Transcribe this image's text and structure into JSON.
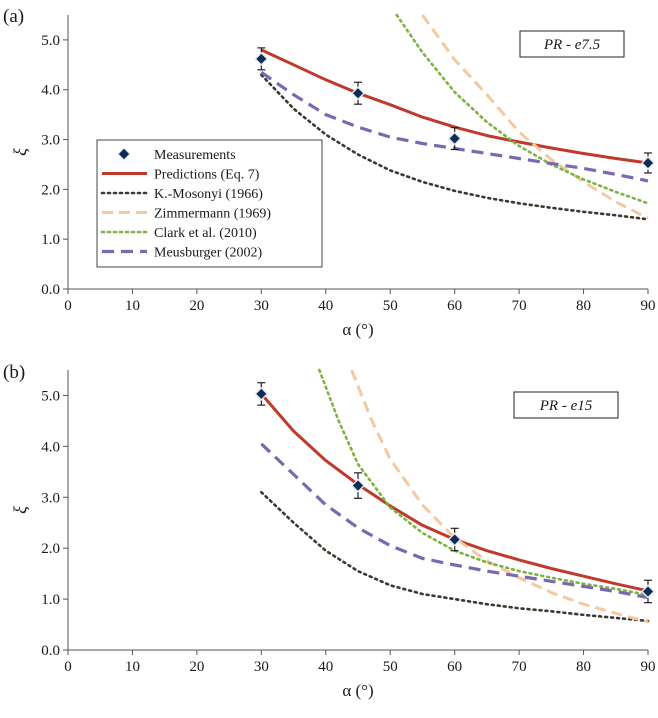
{
  "chart_data": [
    {
      "type": "line",
      "panel": "(a)",
      "case_label": "PR - e7.5",
      "xlabel": "α (°)",
      "ylabel": "ξ",
      "xlim": [
        0,
        90
      ],
      "ylim": [
        0,
        5.5
      ],
      "x_ticks": [
        "0",
        "10",
        "20",
        "30",
        "40",
        "50",
        "60",
        "70",
        "80",
        "90"
      ],
      "y_ticks": [
        "0.0",
        "1.0",
        "2.0",
        "3.0",
        "4.0",
        "5.0"
      ],
      "grid": false,
      "legend_position": "left",
      "measurements": {
        "name": "Measurements",
        "x": [
          30,
          45,
          60,
          90
        ],
        "y": [
          4.62,
          3.93,
          3.02,
          2.53
        ],
        "err": [
          0.22,
          0.22,
          0.22,
          0.2
        ]
      },
      "series": [
        {
          "name": "Predictions (Eq. 7)",
          "color": "#c0392b",
          "dash": "solid",
          "x": [
            30,
            35,
            40,
            45,
            50,
            55,
            60,
            65,
            70,
            75,
            80,
            85,
            90
          ],
          "y": [
            4.8,
            4.5,
            4.2,
            3.93,
            3.7,
            3.45,
            3.25,
            3.08,
            2.95,
            2.83,
            2.72,
            2.62,
            2.53
          ]
        },
        {
          "name": "K.-Mosonyi (1966)",
          "color": "#3a3a2e",
          "dash": "dot",
          "x": [
            30,
            35,
            40,
            45,
            50,
            55,
            60,
            65,
            70,
            75,
            80,
            85,
            90
          ],
          "y": [
            4.3,
            3.62,
            3.1,
            2.7,
            2.38,
            2.15,
            1.97,
            1.83,
            1.72,
            1.63,
            1.55,
            1.48,
            1.4
          ]
        },
        {
          "name": "Zimmermann (1969)",
          "color": "#f5c9a0",
          "dash": "dash",
          "x": [
            55,
            60,
            65,
            70,
            75,
            80,
            85,
            90
          ],
          "y": [
            5.5,
            4.6,
            3.9,
            3.15,
            2.6,
            2.15,
            1.75,
            1.42
          ]
        },
        {
          "name": "Clark et al. (2010)",
          "color": "#7cb342",
          "dash": "dot",
          "x": [
            51,
            55,
            60,
            65,
            70,
            75,
            80,
            85,
            90
          ],
          "y": [
            5.5,
            4.75,
            3.95,
            3.35,
            2.87,
            2.5,
            2.2,
            1.95,
            1.72
          ]
        },
        {
          "name": "Meusburger (2002)",
          "color": "#7b68b0",
          "dash": "longdash",
          "x": [
            30,
            35,
            40,
            45,
            50,
            55,
            60,
            65,
            70,
            75,
            80,
            85,
            90
          ],
          "y": [
            4.35,
            3.9,
            3.5,
            3.25,
            3.05,
            2.92,
            2.82,
            2.72,
            2.62,
            2.52,
            2.42,
            2.3,
            2.17
          ]
        }
      ]
    },
    {
      "type": "line",
      "panel": "(b)",
      "case_label": "PR - e15",
      "xlabel": "α (°)",
      "ylabel": "ξ",
      "xlim": [
        0,
        90
      ],
      "ylim": [
        0,
        5.5
      ],
      "x_ticks": [
        "0",
        "10",
        "20",
        "30",
        "40",
        "50",
        "60",
        "70",
        "80",
        "90"
      ],
      "y_ticks": [
        "0.0",
        "1.0",
        "2.0",
        "3.0",
        "4.0",
        "5.0"
      ],
      "grid": false,
      "measurements": {
        "name": "Measurements",
        "x": [
          30,
          45,
          60,
          90
        ],
        "y": [
          5.03,
          3.23,
          2.17,
          1.15
        ],
        "err": [
          0.22,
          0.25,
          0.22,
          0.22
        ]
      },
      "series": [
        {
          "name": "Predictions (Eq. 7)",
          "color": "#c0392b",
          "dash": "solid",
          "x": [
            30,
            35,
            40,
            45,
            50,
            55,
            60,
            65,
            70,
            75,
            80,
            85,
            90
          ],
          "y": [
            5.03,
            4.3,
            3.72,
            3.25,
            2.83,
            2.45,
            2.17,
            1.95,
            1.77,
            1.6,
            1.45,
            1.3,
            1.16
          ]
        },
        {
          "name": "K.-Mosonyi (1966)",
          "color": "#3a3a2e",
          "dash": "dot",
          "x": [
            30,
            35,
            40,
            45,
            50,
            55,
            60,
            65,
            70,
            75,
            80,
            85,
            90
          ],
          "y": [
            3.1,
            2.5,
            1.95,
            1.55,
            1.27,
            1.1,
            1.0,
            0.9,
            0.82,
            0.76,
            0.69,
            0.63,
            0.57
          ]
        },
        {
          "name": "Zimmermann (1969)",
          "color": "#f5c9a0",
          "dash": "dash",
          "x": [
            44,
            47,
            50,
            55,
            60,
            65,
            70,
            75,
            80,
            85,
            90
          ],
          "y": [
            5.5,
            4.55,
            3.75,
            2.85,
            2.2,
            1.75,
            1.42,
            1.13,
            0.9,
            0.72,
            0.55
          ]
        },
        {
          "name": "Clark et al. (2010)",
          "color": "#7cb342",
          "dash": "dot",
          "x": [
            39,
            42,
            45,
            50,
            55,
            60,
            65,
            70,
            75,
            80,
            85,
            90
          ],
          "y": [
            5.5,
            4.5,
            3.65,
            2.8,
            2.3,
            1.95,
            1.72,
            1.55,
            1.42,
            1.3,
            1.2,
            1.08
          ]
        },
        {
          "name": "Meusburger (2002)",
          "color": "#7b68b0",
          "dash": "longdash",
          "x": [
            30,
            35,
            40,
            45,
            50,
            55,
            60,
            65,
            70,
            75,
            80,
            85,
            90
          ],
          "y": [
            4.05,
            3.45,
            2.85,
            2.4,
            2.05,
            1.8,
            1.67,
            1.55,
            1.45,
            1.35,
            1.25,
            1.15,
            1.03
          ]
        }
      ]
    }
  ]
}
